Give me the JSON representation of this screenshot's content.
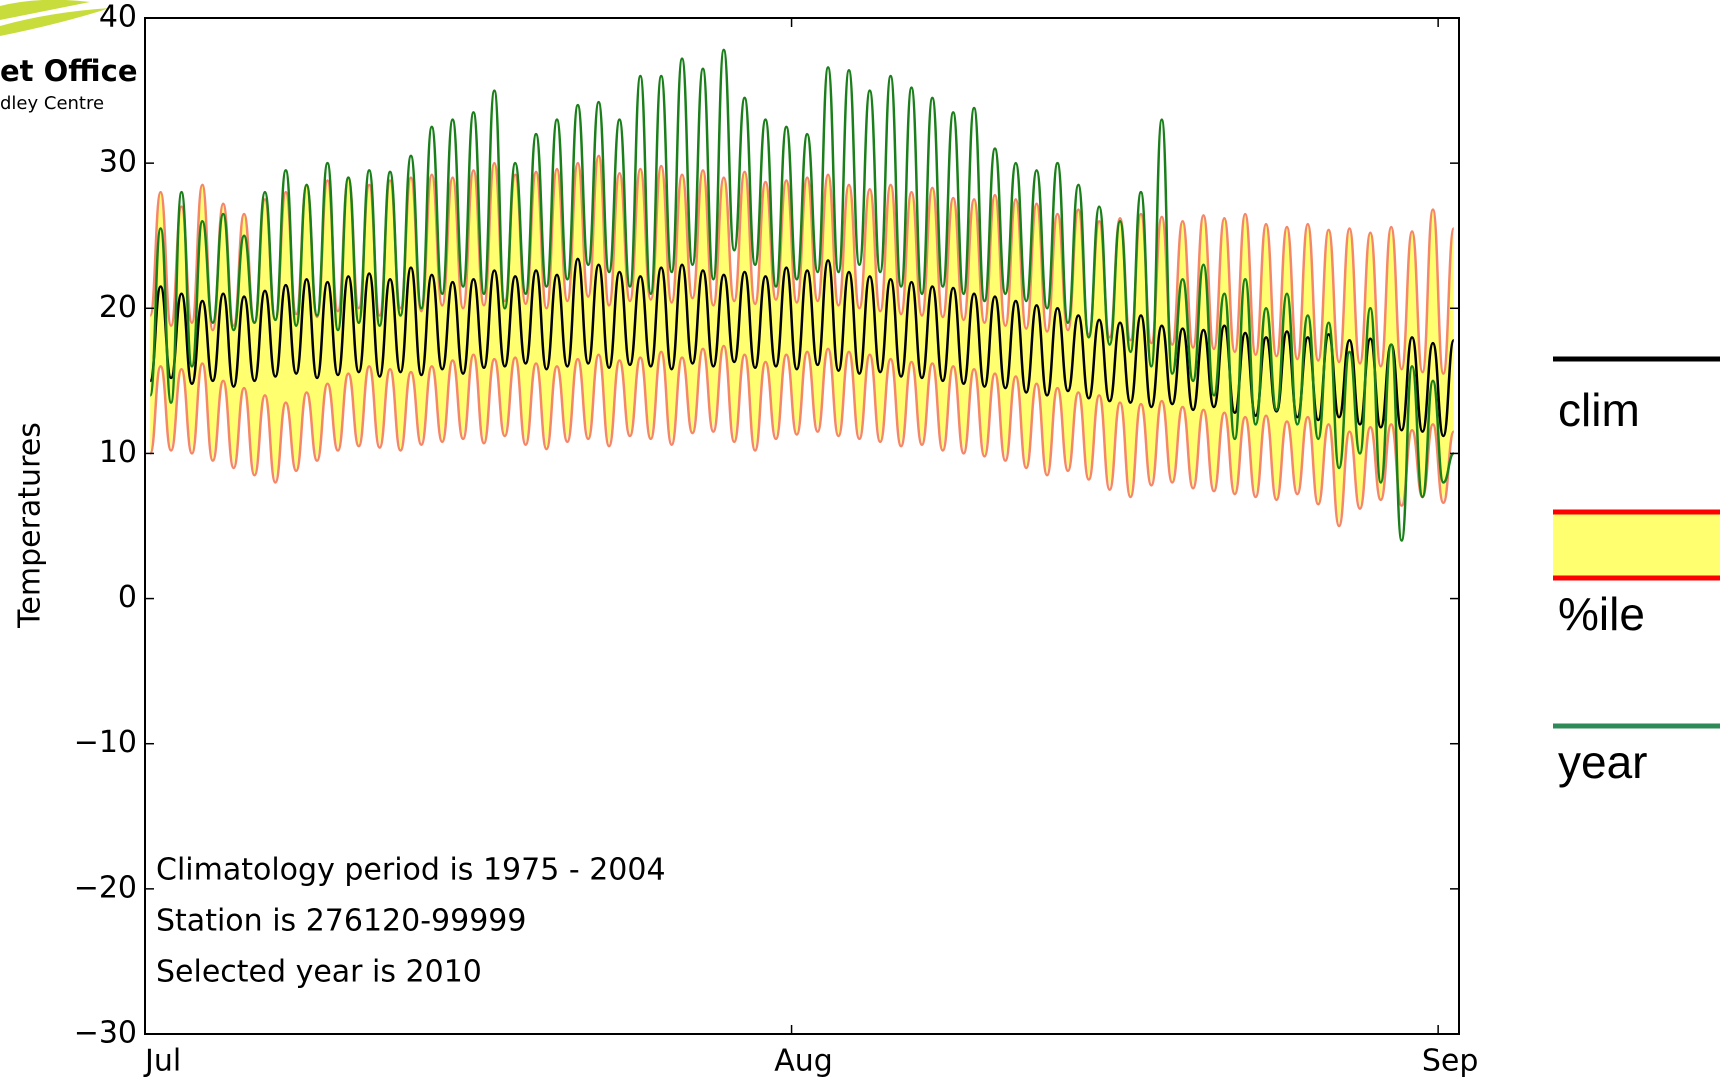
{
  "logo": {
    "line1": "et Office",
    "line2": "dley Centre"
  },
  "chart_data": {
    "type": "line",
    "ylabel": "Temperatures",
    "annotations": [
      "Climatology period is 1975 - 2004",
      "Station is 276120-99999",
      "Selected year is 2010"
    ],
    "xlim": [
      0,
      63
    ],
    "xticks": [
      {
        "value": 0,
        "label": "Jul"
      },
      {
        "value": 31,
        "label": "Aug"
      },
      {
        "value": 62,
        "label": "Sep"
      }
    ],
    "ylim": [
      -30,
      40
    ],
    "yticks": [
      {
        "value": -30,
        "label": "−30"
      },
      {
        "value": -20,
        "label": "−20"
      },
      {
        "value": -10,
        "label": "−10"
      },
      0,
      10,
      20,
      30,
      40
    ],
    "x": [
      0.25,
      0.75,
      1.25,
      1.75,
      2.25,
      2.75,
      3.25,
      3.75,
      4.25,
      4.75,
      5.25,
      5.75,
      6.25,
      6.75,
      7.25,
      7.75,
      8.25,
      8.75,
      9.25,
      9.75,
      10.25,
      10.75,
      11.25,
      11.75,
      12.25,
      12.75,
      13.25,
      13.75,
      14.25,
      14.75,
      15.25,
      15.75,
      16.25,
      16.75,
      17.25,
      17.75,
      18.25,
      18.75,
      19.25,
      19.75,
      20.25,
      20.75,
      21.25,
      21.75,
      22.25,
      22.75,
      23.25,
      23.75,
      24.25,
      24.75,
      25.25,
      25.75,
      26.25,
      26.75,
      27.25,
      27.75,
      28.25,
      28.75,
      29.25,
      29.75,
      30.25,
      30.75,
      31.25,
      31.75,
      32.25,
      32.75,
      33.25,
      33.75,
      34.25,
      34.75,
      35.25,
      35.75,
      36.25,
      36.75,
      37.25,
      37.75,
      38.25,
      38.75,
      39.25,
      39.75,
      40.25,
      40.75,
      41.25,
      41.75,
      42.25,
      42.75,
      43.25,
      43.75,
      44.25,
      44.75,
      45.25,
      45.75,
      46.25,
      46.75,
      47.25,
      47.75,
      48.25,
      48.75,
      49.25,
      49.75,
      50.25,
      50.75,
      51.25,
      51.75,
      52.25,
      52.75,
      53.25,
      53.75,
      54.25,
      54.75,
      55.25,
      55.75,
      56.25,
      56.75,
      57.25,
      57.75,
      58.25,
      58.75,
      59.25,
      59.75,
      60.25,
      60.75,
      61.25,
      61.75,
      62.25,
      62.75
    ],
    "series": [
      {
        "name": "clim",
        "color": "#000000",
        "values": [
          15,
          21.5,
          15.2,
          21,
          14.8,
          20.5,
          15,
          21,
          14.6,
          20.8,
          15,
          21.2,
          15.3,
          21.6,
          15.5,
          22,
          15.2,
          21.8,
          15.4,
          22.2,
          15.6,
          22.4,
          15.3,
          22,
          15.6,
          22.8,
          15.4,
          22.3,
          15.8,
          21.8,
          15.5,
          22,
          15.9,
          22.6,
          16,
          22.2,
          16.2,
          22.6,
          15.8,
          22.3,
          16,
          23.4,
          16.2,
          23,
          15.9,
          22.5,
          16.1,
          22.2,
          16,
          22.8,
          15.8,
          23,
          16.2,
          22.6,
          16,
          22.3,
          16.3,
          22.5,
          15.9,
          22.2,
          16,
          22.8,
          15.8,
          22.6,
          16.1,
          23.3,
          15.7,
          22.5,
          15.5,
          22.2,
          15.6,
          22,
          15.3,
          21.8,
          15.2,
          21.5,
          15,
          21.4,
          14.8,
          21,
          14.6,
          20.8,
          14.5,
          20.5,
          14.2,
          20.2,
          14,
          20,
          14.3,
          19.5,
          13.8,
          19.2,
          13.6,
          19,
          13.5,
          19.5,
          13.2,
          18.8,
          13.4,
          18.6,
          13,
          18.5,
          13.2,
          18.8,
          12.8,
          18.3,
          12.6,
          18,
          12.9,
          18.4,
          12.5,
          18,
          12.3,
          18.2,
          12.5,
          17.8,
          12,
          17.9,
          11.8,
          17.5,
          11.6,
          18,
          11.5,
          17.6,
          11.2,
          17.8
        ]
      },
      {
        "name": "%ile",
        "color": "#f4876a",
        "fill": "#ffff70",
        "legend_color": "#ff0000",
        "high": [
          19.5,
          28,
          18.8,
          27,
          19,
          28.5,
          18.5,
          27.2,
          18.8,
          26.5,
          19,
          27.5,
          19.2,
          28,
          19.6,
          28.5,
          19.4,
          28.8,
          19.8,
          29,
          20,
          28.5,
          19.5,
          28.8,
          20,
          29,
          19.8,
          29.2,
          20.2,
          29,
          20,
          29.5,
          20.2,
          30,
          20.5,
          29.2,
          20.3,
          29.4,
          20,
          29.6,
          20.5,
          30,
          20.8,
          30.5,
          20.2,
          29.3,
          20.5,
          29.6,
          20.6,
          29.8,
          20.4,
          29.2,
          20.7,
          29.5,
          20.2,
          29,
          20.5,
          29.4,
          20.3,
          28.7,
          20.6,
          28.8,
          20.4,
          29,
          20.5,
          29.2,
          20.2,
          28.5,
          20,
          28.2,
          19.8,
          28.5,
          19.6,
          28,
          19.5,
          28.3,
          19.4,
          27.6,
          19.2,
          27.5,
          19,
          27.8,
          18.8,
          27.5,
          18.6,
          27.2,
          18.4,
          26.5,
          18.5,
          26.8,
          18.2,
          26,
          18,
          26.2,
          17.8,
          26.5,
          17.6,
          26.3,
          17.5,
          26,
          17.3,
          26.4,
          17.2,
          26.2,
          17,
          26.5,
          16.8,
          25.8,
          16.7,
          25.6,
          16.5,
          25.8,
          16.4,
          25.4,
          16.3,
          25.5,
          16.2,
          25.2,
          16,
          25.6,
          15.8,
          25.3,
          15.6,
          26.8,
          15.5,
          25.5
        ],
        "low": [
          10,
          16,
          10.2,
          15.8,
          10,
          16.2,
          9.5,
          15,
          9,
          14.5,
          8.5,
          14,
          8,
          13.5,
          8.8,
          14.2,
          9.5,
          14.8,
          10.2,
          15.5,
          10.5,
          16,
          10.4,
          15.8,
          10.2,
          15.6,
          10.6,
          16,
          10.8,
          16.4,
          11,
          16.8,
          10.7,
          16.5,
          11.2,
          16.6,
          10.6,
          16.2,
          10.3,
          16,
          10.8,
          16.5,
          11,
          16.8,
          10.5,
          16.4,
          11.2,
          16.6,
          11,
          17,
          10.6,
          16.6,
          11.4,
          17.2,
          11.5,
          17.4,
          10.8,
          16.8,
          10.2,
          16.3,
          11,
          16.8,
          11.3,
          17,
          11.5,
          17.2,
          11.2,
          17,
          11,
          16.8,
          10.8,
          16.5,
          10.5,
          16.3,
          10.6,
          16.2,
          10.2,
          16,
          10,
          15.8,
          9.8,
          15.5,
          9.5,
          15.3,
          9,
          14.8,
          8.5,
          14.5,
          8.8,
          14.2,
          8.2,
          14,
          7.5,
          13.5,
          7,
          13.4,
          7.8,
          13.6,
          8,
          13.2,
          7.6,
          13,
          7.4,
          12.8,
          7.2,
          12.5,
          7,
          12.6,
          6.8,
          12.2,
          7.2,
          12.5,
          6.5,
          12,
          5,
          11.5,
          6.2,
          11.8,
          6.8,
          12,
          6.4,
          11.6,
          7,
          12,
          6.6,
          11.5
        ]
      },
      {
        "name": "year",
        "color": "#1a7f1a",
        "legend_color": "#2e8b57",
        "values": [
          14,
          25.5,
          13.5,
          28,
          16,
          26,
          19,
          26.5,
          18.5,
          25,
          19,
          28,
          19.2,
          29.5,
          18.8,
          28.5,
          19.5,
          30,
          18.5,
          29,
          19,
          29.5,
          18.8,
          29.4,
          19.5,
          30.5,
          20,
          32.5,
          21,
          33,
          21.5,
          33.5,
          21,
          35,
          20,
          30,
          21,
          32,
          21.5,
          33,
          22,
          34,
          23,
          34.2,
          22.5,
          33,
          21.5,
          36,
          21,
          36,
          22.5,
          37.2,
          23,
          36.5,
          22,
          37.8,
          24,
          34.5,
          23,
          33,
          21.5,
          32.5,
          22,
          32,
          22.5,
          36.6,
          22.5,
          36.4,
          23,
          35,
          22.5,
          36,
          21.5,
          35.2,
          21,
          34.5,
          21.5,
          33.5,
          21,
          33.8,
          20.5,
          31,
          21,
          30,
          20.5,
          29.5,
          20,
          30,
          19,
          28.5,
          18,
          27,
          17.5,
          26,
          17,
          28,
          16,
          33,
          15.5,
          22,
          15,
          23,
          14,
          21,
          11,
          22,
          12,
          20,
          13,
          21,
          12,
          19.5,
          11,
          19,
          9,
          17,
          10,
          20,
          8,
          17.5,
          4,
          16,
          7,
          15,
          8,
          10
        ]
      }
    ]
  }
}
